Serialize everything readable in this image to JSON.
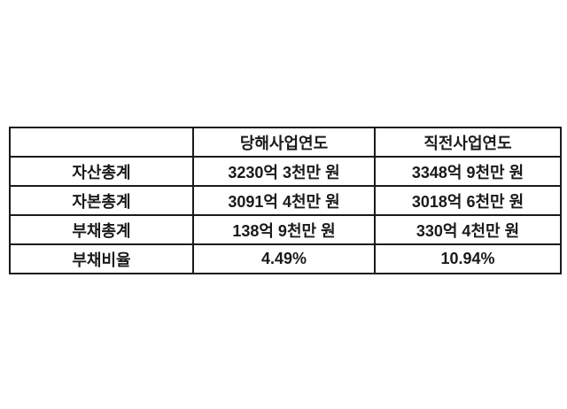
{
  "page": {
    "background_color": "#ffffff",
    "border_color": "#1a1a1a",
    "text_color": "#1a1a1a"
  },
  "table": {
    "columns": [
      "",
      "당해사업연도",
      "직전사업연도"
    ],
    "rows": [
      {
        "label": "자산총계",
        "current": "3230억 3천만 원",
        "previous": "3348억 9천만 원"
      },
      {
        "label": "자본총계",
        "current": "3091억 4천만 원",
        "previous": "3018억 6천만 원"
      },
      {
        "label": "부채총계",
        "current": "138억 9천만 원",
        "previous": "330억 4천만 원"
      },
      {
        "label": "부채비율",
        "current": "4.49%",
        "previous": "10.94%"
      }
    ]
  }
}
